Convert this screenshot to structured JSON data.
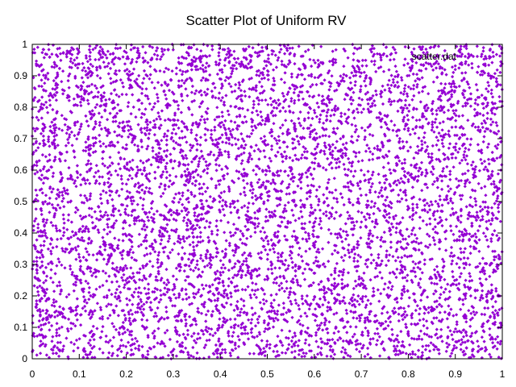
{
  "chart_data": {
    "type": "scatter",
    "title": "Scatter Plot of Uniform RV",
    "xlabel": "",
    "ylabel": "",
    "xlim": [
      0,
      1
    ],
    "ylim": [
      0,
      1
    ],
    "x_ticks": [
      "0",
      "0.1",
      "0.2",
      "0.3",
      "0.4",
      "0.5",
      "0.6",
      "0.7",
      "0.8",
      "0.9",
      "1"
    ],
    "y_ticks": [
      "0",
      "0.1",
      "0.2",
      "0.3",
      "0.4",
      "0.5",
      "0.6",
      "0.7",
      "0.8",
      "0.9",
      "1"
    ],
    "grid": false,
    "legend_position": "top-right",
    "distribution": "uniform on [0,1] x [0,1]",
    "marker_color": "#9400d3",
    "series": [
      {
        "name": "scatter.dat",
        "x": [
          0.01,
          0.03,
          0.05,
          0.07,
          0.09,
          0.12,
          0.15,
          0.18,
          0.21,
          0.24,
          0.27,
          0.3,
          0.33,
          0.36,
          0.39,
          0.42,
          0.45,
          0.48,
          0.51,
          0.54,
          0.57,
          0.6,
          0.63,
          0.66,
          0.69,
          0.72,
          0.75,
          0.78,
          0.81,
          0.84,
          0.87,
          0.9,
          0.93,
          0.96,
          0.99,
          0.02,
          0.11,
          0.23,
          0.37,
          0.49,
          0.58,
          0.71,
          0.83,
          0.94,
          0.06,
          0.19,
          0.31,
          0.44,
          0.56,
          0.68,
          0.79,
          0.91,
          0.04,
          0.17,
          0.28,
          0.41,
          0.53,
          0.64,
          0.76,
          0.88,
          0.97
        ],
        "y": [
          0.52,
          0.13,
          0.87,
          0.34,
          0.71,
          0.05,
          0.62,
          0.29,
          0.94,
          0.41,
          0.18,
          0.76,
          0.57,
          0.09,
          0.83,
          0.36,
          0.67,
          0.22,
          0.98,
          0.47,
          0.11,
          0.79,
          0.31,
          0.64,
          0.03,
          0.88,
          0.45,
          0.16,
          0.73,
          0.59,
          0.26,
          0.92,
          0.38,
          0.69,
          0.07,
          0.81,
          0.27,
          0.55,
          0.14,
          0.91,
          0.43,
          0.66,
          0.02,
          0.35,
          0.97,
          0.49,
          0.12,
          0.74,
          0.28,
          0.86,
          0.53,
          0.19,
          0.61,
          0.04,
          0.39,
          0.95,
          0.24,
          0.72,
          0.33,
          0.58,
          0.85
        ]
      }
    ]
  }
}
